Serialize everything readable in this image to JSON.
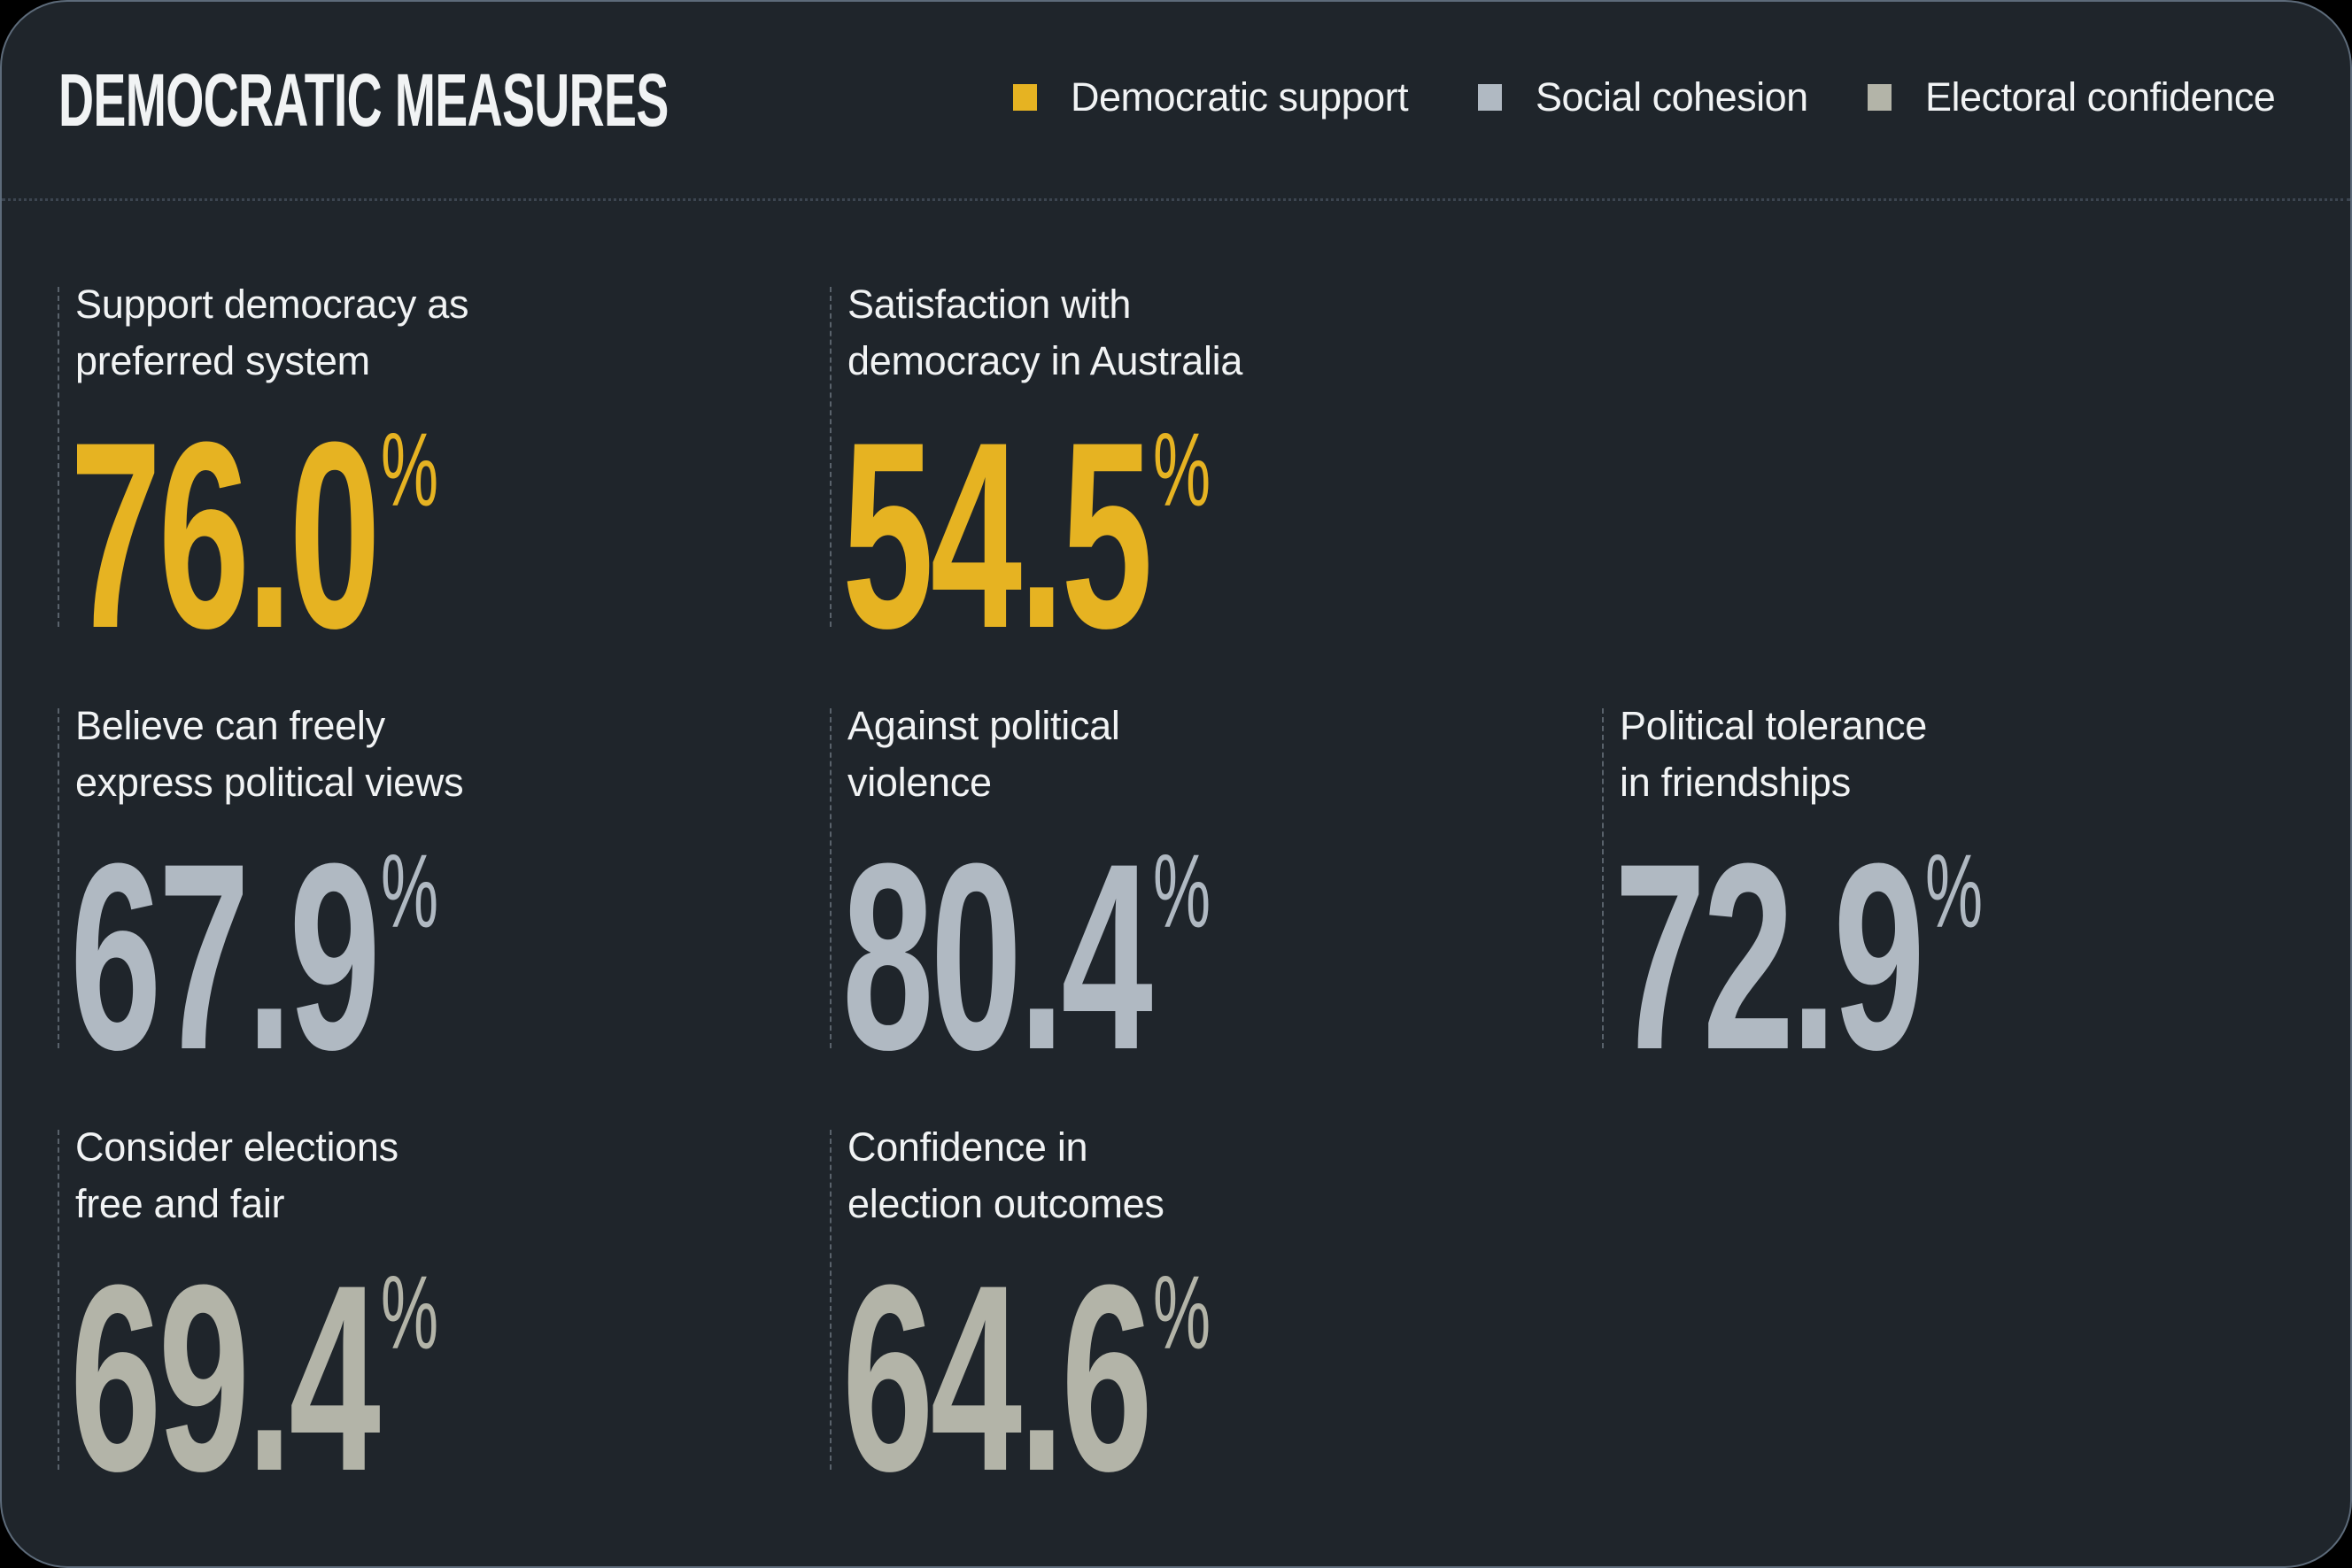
{
  "header": {
    "title": "DEMOCRATIC MEASURES"
  },
  "legend": [
    {
      "label": "Democratic support",
      "color": "#e6b322"
    },
    {
      "label": "Social cohesion",
      "color": "#b0b9c2"
    },
    {
      "label": "Electoral confidence",
      "color": "#b3b4a8"
    }
  ],
  "metrics": [
    {
      "label_line1": "Support democracy as",
      "label_line2": "preferred system",
      "value": "76.0",
      "unit": "%",
      "category": "Democratic support",
      "color": "#e6b322"
    },
    {
      "label_line1": "Satisfaction with",
      "label_line2": "democracy in Australia",
      "value": "54.5",
      "unit": "%",
      "category": "Democratic support",
      "color": "#e6b322"
    },
    {
      "label_line1": "Believe can freely",
      "label_line2": "express political views",
      "value": "67.9",
      "unit": "%",
      "category": "Social cohesion",
      "color": "#b0b9c2"
    },
    {
      "label_line1": "Against political",
      "label_line2": "violence",
      "value": "80.4",
      "unit": "%",
      "category": "Social cohesion",
      "color": "#b0b9c2"
    },
    {
      "label_line1": "Political tolerance",
      "label_line2": "in friendships",
      "value": "72.9",
      "unit": "%",
      "category": "Social cohesion",
      "color": "#b0b9c2"
    },
    {
      "label_line1": "Consider elections",
      "label_line2": "free and fair",
      "value": "69.4",
      "unit": "%",
      "category": "Electoral confidence",
      "color": "#b3b4a8"
    },
    {
      "label_line1": "Confidence in",
      "label_line2": "election outcomes",
      "value": "64.6",
      "unit": "%",
      "category": "Electoral confidence",
      "color": "#b3b4a8"
    }
  ]
}
